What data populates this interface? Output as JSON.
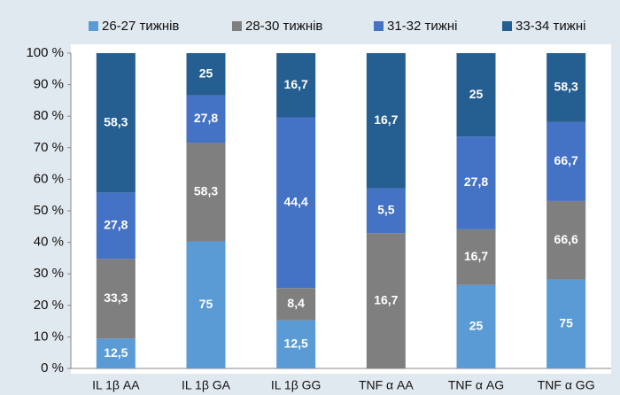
{
  "chart_data": {
    "type": "bar",
    "stack": "percent",
    "grid": false,
    "legend": "top",
    "categories": [
      "IL 1β AA",
      "IL 1β GA",
      "IL 1β GG",
      "TNF α AA",
      "TNF α AG",
      "TNF α GG"
    ],
    "series": [
      {
        "name": "26-27 тижнів",
        "color": "#5b9bd5",
        "values": [
          12.5,
          75,
          12.5,
          null,
          25,
          75
        ],
        "value_labels": [
          "12,5",
          "75",
          "12,5",
          null,
          "25",
          "75"
        ]
      },
      {
        "name": "28-30 тижнів",
        "color": "#7f7f7f",
        "values": [
          33.3,
          58.3,
          8.4,
          16.7,
          16.7,
          66.6
        ],
        "value_labels": [
          "33,3",
          "58,3",
          "8,4",
          "16,7",
          "16,7",
          "66,6"
        ]
      },
      {
        "name": "31-32 тижні",
        "color": "#4472c4",
        "values": [
          27.8,
          27.8,
          44.4,
          5.5,
          27.8,
          66.7
        ],
        "value_labels": [
          "27,8",
          "27,8",
          "44,4",
          "5,5",
          "27,8",
          "66,7"
        ]
      },
      {
        "name": "33-34 тижні",
        "color": "#255e91",
        "values": [
          58.3,
          25,
          16.7,
          16.7,
          25,
          58.3
        ],
        "value_labels": [
          "58,3",
          "25",
          "16,7",
          "16,7",
          "25",
          "58,3"
        ]
      }
    ],
    "ylim": [
      0,
      100
    ],
    "yticks": [
      {
        "value": 0,
        "label": "0 %"
      },
      {
        "value": 10,
        "label": "10 %"
      },
      {
        "value": 20,
        "label": "20 %"
      },
      {
        "value": 30,
        "label": "30 %"
      },
      {
        "value": 40,
        "label": "40 %"
      },
      {
        "value": 50,
        "label": "50 %"
      },
      {
        "value": 60,
        "label": "60 %"
      },
      {
        "value": 70,
        "label": "70 %"
      },
      {
        "value": 80,
        "label": "80 %"
      },
      {
        "value": 90,
        "label": "90 %"
      },
      {
        "value": 100,
        "label": "100 %"
      }
    ]
  }
}
